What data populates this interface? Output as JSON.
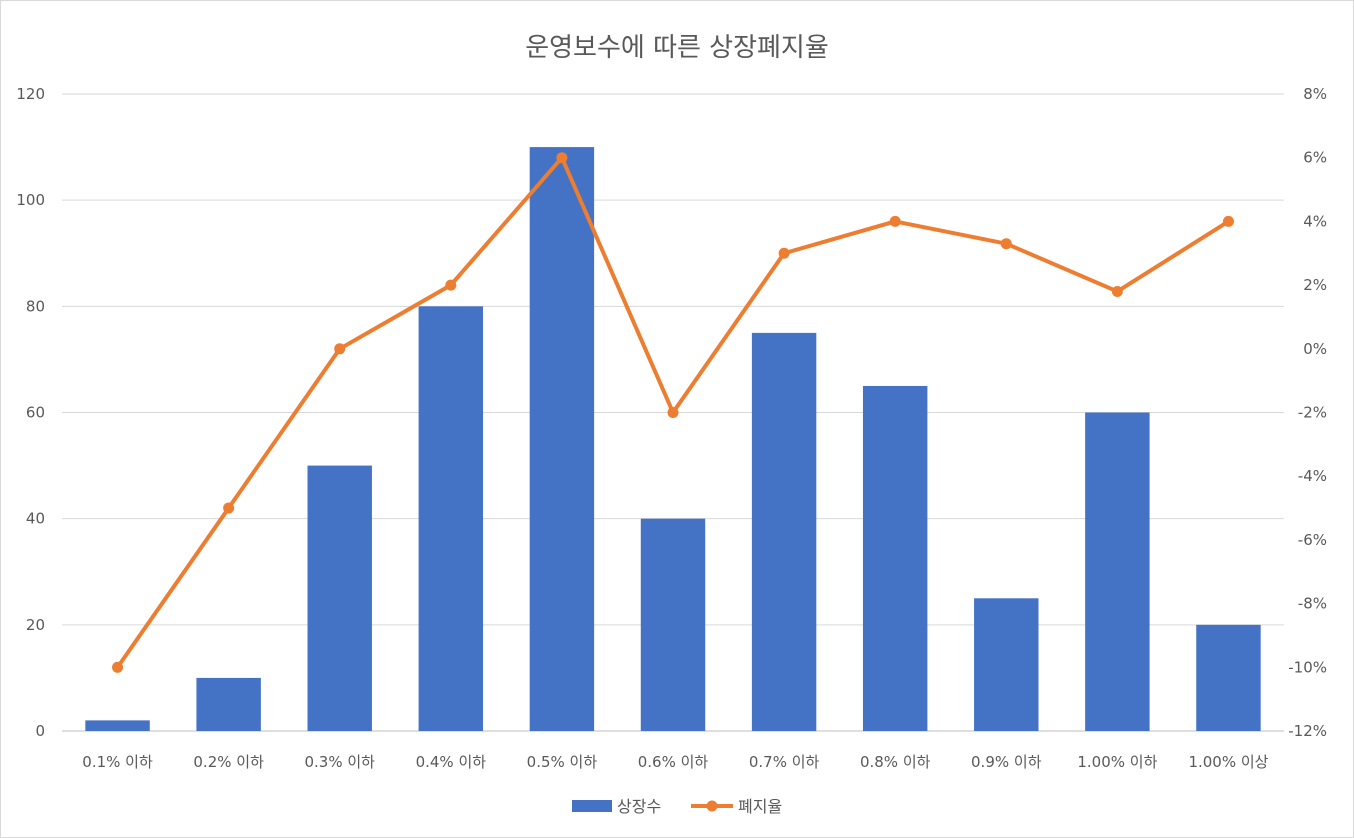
{
  "chart_data": {
    "type": "bar",
    "title": "운영보수에 따른 상장폐지율",
    "categories": [
      "0.1% 이하",
      "0.2% 이하",
      "0.3% 이하",
      "0.4% 이하",
      "0.5% 이하",
      "0.6% 이하",
      "0.7% 이하",
      "0.8% 이하",
      "0.9% 이하",
      "1.00% 이하",
      "1.00% 이상"
    ],
    "series": [
      {
        "name": "상장수",
        "type": "bar",
        "axis": "left",
        "color": "#4472C4",
        "values": [
          2,
          10,
          50,
          80,
          110,
          40,
          75,
          65,
          25,
          60,
          20
        ]
      },
      {
        "name": "폐지율",
        "type": "line",
        "axis": "right",
        "color": "#ED7D31",
        "values": [
          -10,
          -5,
          0,
          2,
          6,
          -2,
          3,
          4,
          3.3,
          1.8,
          4
        ]
      }
    ],
    "y_left": {
      "min": 0,
      "max": 120,
      "ticks": [
        "0",
        "20",
        "40",
        "60",
        "80",
        "100",
        "120"
      ]
    },
    "y_right": {
      "min": -12,
      "max": 8,
      "unit": "%",
      "ticks": [
        "-12%",
        "-10%",
        "-8%",
        "-6%",
        "-4%",
        "-2%",
        "0%",
        "2%",
        "4%",
        "6%",
        "8%"
      ]
    },
    "grid": true,
    "legend": "bottom"
  }
}
